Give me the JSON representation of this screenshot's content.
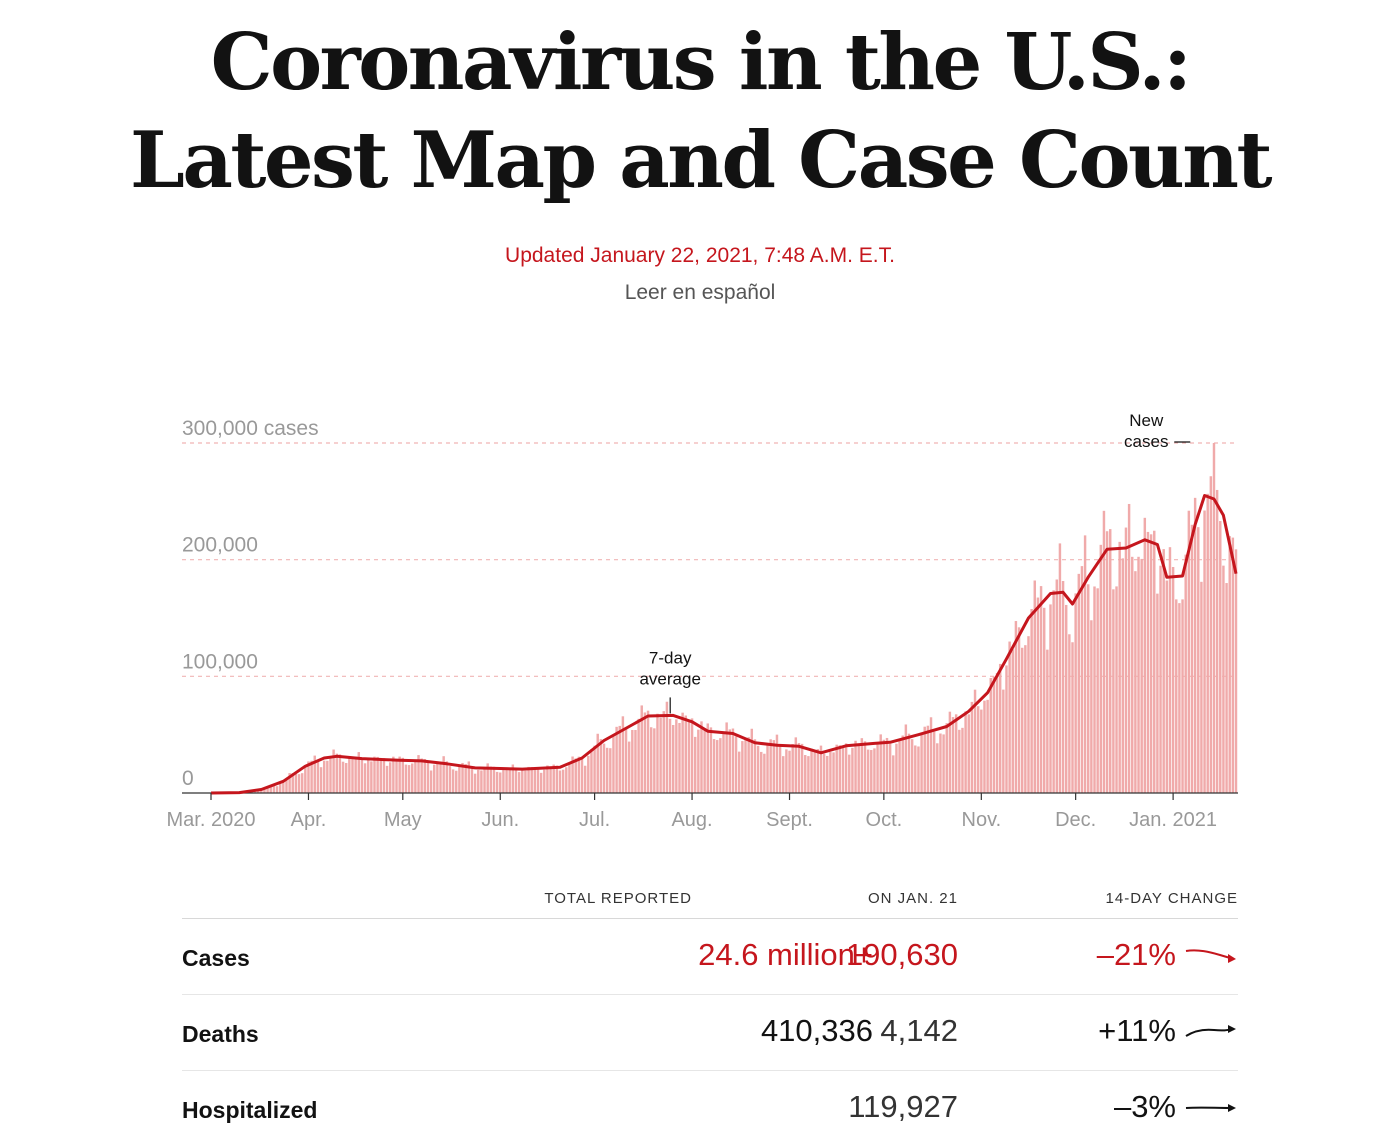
{
  "headline": {
    "line1": "Coronavirus in the U.S.:",
    "line2": "Latest Map and Case Count"
  },
  "updated": "Updated January 22, 2021, 7:48 A.M. E.T.",
  "spanish_link": "Leer en español",
  "colors": {
    "accent_red": "#c5161d",
    "bar_pink": "#f0aaaa",
    "grid_pink": "#f1b5b5",
    "axis_text": "#999999"
  },
  "chart_data": {
    "type": "bar",
    "ylim": [
      0,
      300000
    ],
    "y_ticks": [
      {
        "value": 300000,
        "label": "300,000 cases"
      },
      {
        "value": 200000,
        "label": "200,000"
      },
      {
        "value": 100000,
        "label": "100,000"
      },
      {
        "value": 0,
        "label": "0"
      }
    ],
    "x_start": "2020-03-01",
    "x_end": "2021-01-21",
    "x_ticks": [
      {
        "date": "2020-03-01",
        "label": "Mar. 2020"
      },
      {
        "date": "2020-04-01",
        "label": "Apr."
      },
      {
        "date": "2020-05-01",
        "label": "May"
      },
      {
        "date": "2020-06-01",
        "label": "Jun."
      },
      {
        "date": "2020-07-01",
        "label": "Jul."
      },
      {
        "date": "2020-08-01",
        "label": "Aug."
      },
      {
        "date": "2020-09-01",
        "label": "Sept."
      },
      {
        "date": "2020-10-01",
        "label": "Oct."
      },
      {
        "date": "2020-11-01",
        "label": "Nov."
      },
      {
        "date": "2020-12-01",
        "label": "Dec."
      },
      {
        "date": "2021-01-01",
        "label": "Jan. 2021"
      }
    ],
    "series": [
      {
        "name": "New cases",
        "kind": "daily bars"
      },
      {
        "name": "7-day average",
        "kind": "line",
        "points": [
          [
            "2020-03-01",
            0
          ],
          [
            "2020-03-10",
            300
          ],
          [
            "2020-03-17",
            3000
          ],
          [
            "2020-03-24",
            10000
          ],
          [
            "2020-03-31",
            23000
          ],
          [
            "2020-04-06",
            30000
          ],
          [
            "2020-04-10",
            31500
          ],
          [
            "2020-04-18",
            29500
          ],
          [
            "2020-04-30",
            28000
          ],
          [
            "2020-05-07",
            27500
          ],
          [
            "2020-05-15",
            25000
          ],
          [
            "2020-05-24",
            21500
          ],
          [
            "2020-06-01",
            21000
          ],
          [
            "2020-06-08",
            20500
          ],
          [
            "2020-06-20",
            22000
          ],
          [
            "2020-06-27",
            30000
          ],
          [
            "2020-07-04",
            45000
          ],
          [
            "2020-07-12",
            57000
          ],
          [
            "2020-07-18",
            66000
          ],
          [
            "2020-07-26",
            66500
          ],
          [
            "2020-08-01",
            61000
          ],
          [
            "2020-08-06",
            53000
          ],
          [
            "2020-08-14",
            51000
          ],
          [
            "2020-08-21",
            43000
          ],
          [
            "2020-08-28",
            41000
          ],
          [
            "2020-09-04",
            40000
          ],
          [
            "2020-09-11",
            34500
          ],
          [
            "2020-09-19",
            40500
          ],
          [
            "2020-09-28",
            42500
          ],
          [
            "2020-10-03",
            43500
          ],
          [
            "2020-10-12",
            50000
          ],
          [
            "2020-10-21",
            57000
          ],
          [
            "2020-10-28",
            70000
          ],
          [
            "2020-11-03",
            86000
          ],
          [
            "2020-11-09",
            115000
          ],
          [
            "2020-11-16",
            150000
          ],
          [
            "2020-11-23",
            171000
          ],
          [
            "2020-11-27",
            172000
          ],
          [
            "2020-11-30",
            162000
          ],
          [
            "2020-12-05",
            185000
          ],
          [
            "2020-12-11",
            209000
          ],
          [
            "2020-12-17",
            210000
          ],
          [
            "2020-12-23",
            217000
          ],
          [
            "2020-12-27",
            213000
          ],
          [
            "2020-12-30",
            185000
          ],
          [
            "2021-01-04",
            186000
          ],
          [
            "2021-01-08",
            230000
          ],
          [
            "2021-01-11",
            255000
          ],
          [
            "2021-01-14",
            252000
          ],
          [
            "2021-01-17",
            238000
          ],
          [
            "2021-01-21",
            188000
          ]
        ]
      }
    ],
    "annotations": [
      {
        "label_lines": [
          "7-day",
          "average"
        ],
        "date": "2020-07-26",
        "value": 66500
      },
      {
        "label_lines": [
          "New",
          "cases"
        ],
        "date": "2021-01-09",
        "value": 300000
      }
    ]
  },
  "table": {
    "headers": [
      "TOTAL REPORTED",
      "ON JAN. 21",
      "14-DAY CHANGE"
    ],
    "rows": [
      {
        "label": "Cases",
        "total": "24.6 million+",
        "on_day": "190,630",
        "change": "–21%",
        "trend": "down"
      },
      {
        "label": "Deaths",
        "total": "410,336",
        "on_day": "4,142",
        "change": "+11%",
        "trend": "up"
      },
      {
        "label": "Hospitalized",
        "total": "",
        "on_day": "119,927",
        "change": "–3%",
        "trend": "flat"
      }
    ]
  }
}
